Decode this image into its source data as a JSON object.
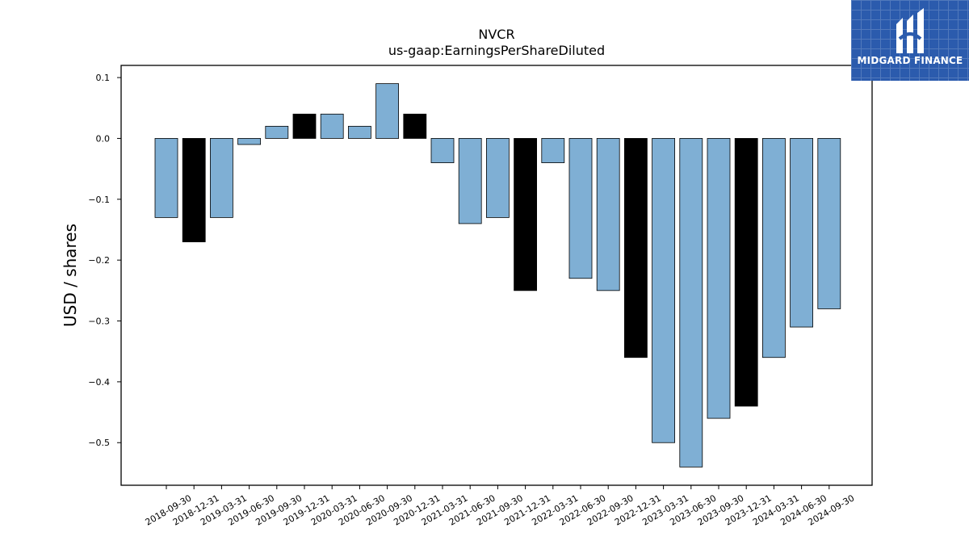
{
  "chart_data": {
    "type": "bar",
    "title": "NVCR",
    "subtitle": "us-gaap:EarningsPerShareDiluted",
    "xlabel": "",
    "ylabel": "USD / shares",
    "ylim": [
      -0.57,
      0.12
    ],
    "yticks": [
      0.1,
      0.0,
      -0.1,
      -0.2,
      -0.3,
      -0.4,
      -0.5
    ],
    "ytick_labels": [
      "0.1",
      "0.0",
      "−0.1",
      "−0.2",
      "−0.3",
      "−0.4",
      "−0.5"
    ],
    "grid": false,
    "categories": [
      "2018-09-30",
      "2018-12-31",
      "2019-03-31",
      "2019-06-30",
      "2019-09-30",
      "2019-12-31",
      "2020-03-31",
      "2020-06-30",
      "2020-09-30",
      "2020-12-31",
      "2021-03-31",
      "2021-06-30",
      "2021-09-30",
      "2021-12-31",
      "2022-03-31",
      "2022-06-30",
      "2022-09-30",
      "2022-12-31",
      "2023-03-31",
      "2023-06-30",
      "2023-09-30",
      "2023-12-31",
      "2024-03-31",
      "2024-06-30",
      "2024-09-30"
    ],
    "values": [
      -0.13,
      -0.17,
      -0.13,
      -0.01,
      0.02,
      0.04,
      0.04,
      0.02,
      0.09,
      0.04,
      -0.04,
      -0.14,
      -0.13,
      -0.25,
      -0.04,
      -0.23,
      -0.25,
      -0.36,
      -0.5,
      -0.54,
      -0.46,
      -0.44,
      -0.36,
      -0.31,
      -0.28
    ],
    "bar_colors": [
      "#7fafd4",
      "#000000",
      "#7fafd4",
      "#7fafd4",
      "#7fafd4",
      "#000000",
      "#7fafd4",
      "#7fafd4",
      "#7fafd4",
      "#000000",
      "#7fafd4",
      "#7fafd4",
      "#7fafd4",
      "#000000",
      "#7fafd4",
      "#7fafd4",
      "#7fafd4",
      "#000000",
      "#7fafd4",
      "#7fafd4",
      "#7fafd4",
      "#000000",
      "#7fafd4",
      "#7fafd4",
      "#7fafd4"
    ]
  },
  "logo": {
    "text": "MIDGARD FINANCE",
    "icon": "midgard-logo-icon",
    "color": "#2b5bad"
  }
}
